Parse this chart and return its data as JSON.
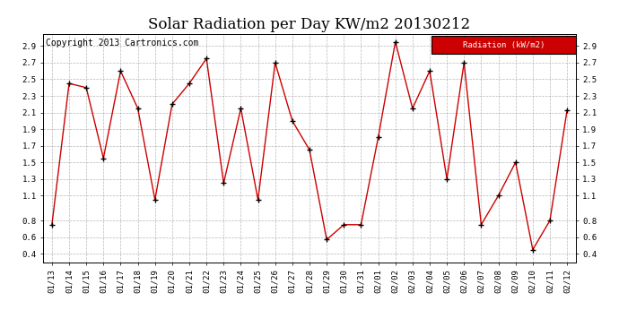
{
  "title": "Solar Radiation per Day KW/m2 20130212",
  "copyright_text": "Copyright 2013 Cartronics.com",
  "legend_label": "Radiation (kW/m2)",
  "legend_bg": "#cc0000",
  "legend_text_color": "#ffffff",
  "line_color": "#cc0000",
  "marker_color": "#000000",
  "bg_color": "#ffffff",
  "grid_color": "#999999",
  "dates": [
    "01/13",
    "01/14",
    "01/15",
    "01/16",
    "01/17",
    "01/18",
    "01/19",
    "01/20",
    "01/21",
    "01/22",
    "01/23",
    "01/24",
    "01/25",
    "01/26",
    "01/27",
    "01/28",
    "01/29",
    "01/30",
    "01/31",
    "02/01",
    "02/02",
    "02/03",
    "02/04",
    "02/05",
    "02/06",
    "02/07",
    "02/08",
    "02/09",
    "02/10",
    "02/11",
    "02/12"
  ],
  "values": [
    0.75,
    2.45,
    2.4,
    1.55,
    2.6,
    2.15,
    1.05,
    2.2,
    2.45,
    2.75,
    1.25,
    2.15,
    1.05,
    2.7,
    2.0,
    1.65,
    0.57,
    0.75,
    0.75,
    1.8,
    2.95,
    2.15,
    2.6,
    1.3,
    2.7,
    0.75,
    1.1,
    1.5,
    0.45,
    0.8,
    2.13
  ],
  "ylim": [
    0.3,
    3.05
  ],
  "yticks": [
    0.4,
    0.6,
    0.8,
    1.1,
    1.3,
    1.5,
    1.7,
    1.9,
    2.1,
    2.3,
    2.5,
    2.7,
    2.9
  ],
  "title_fontsize": 12,
  "copyright_fontsize": 7,
  "axis_fontsize": 6.5
}
